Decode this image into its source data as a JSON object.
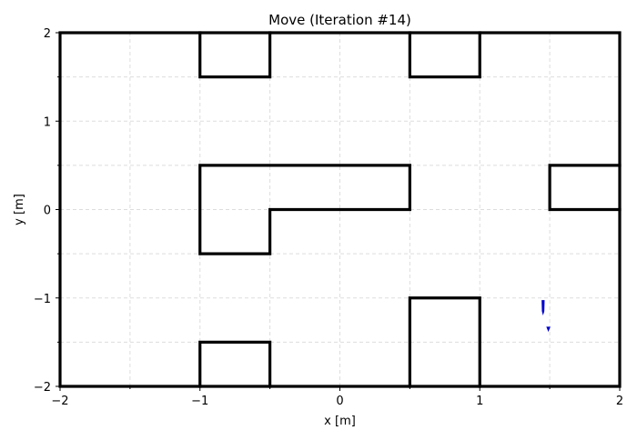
{
  "chart_data": {
    "type": "line",
    "title": "Move (Iteration #14)",
    "xlabel": "x [m]",
    "ylabel": "y [m]",
    "xlim": [
      -2,
      2
    ],
    "ylim": [
      -2,
      2
    ],
    "xticks": [
      -2,
      -1,
      0,
      1,
      2
    ],
    "xtick_labels": [
      "−2",
      "−1",
      "0",
      "1",
      "2"
    ],
    "yticks": [
      -2,
      -1,
      0,
      1,
      2
    ],
    "ytick_labels": [
      "−2",
      "−1",
      "0",
      "1",
      "2"
    ],
    "grid": true,
    "minor_grid_step": 0.5,
    "wall_color": "#000000",
    "grid_color": "#dddddd",
    "walls": [
      {
        "name": "outer-frame",
        "points": [
          [
            -2,
            -2
          ],
          [
            -2,
            2
          ],
          [
            2,
            2
          ],
          [
            2,
            -2
          ],
          [
            -2,
            -2
          ]
        ]
      },
      {
        "name": "top-left-notch",
        "points": [
          [
            -1,
            2
          ],
          [
            -1,
            1.5
          ],
          [
            -0.5,
            1.5
          ],
          [
            -0.5,
            2
          ]
        ]
      },
      {
        "name": "top-right-notch",
        "points": [
          [
            0.5,
            2
          ],
          [
            0.5,
            1.5
          ],
          [
            1,
            1.5
          ],
          [
            1,
            2
          ]
        ]
      },
      {
        "name": "center-block",
        "points": [
          [
            -1,
            0.5
          ],
          [
            0.5,
            0.5
          ],
          [
            0.5,
            0
          ],
          [
            -0.5,
            0
          ],
          [
            -0.5,
            -0.5
          ],
          [
            -1,
            -0.5
          ],
          [
            -1,
            0.5
          ]
        ]
      },
      {
        "name": "right-block",
        "points": [
          [
            2,
            0.5
          ],
          [
            1.5,
            0.5
          ],
          [
            1.5,
            0
          ],
          [
            2,
            0
          ]
        ]
      },
      {
        "name": "bottom-left-bump",
        "points": [
          [
            -1,
            -2
          ],
          [
            -1,
            -1.5
          ],
          [
            -0.5,
            -1.5
          ],
          [
            -0.5,
            -2
          ]
        ]
      },
      {
        "name": "bottom-right-bump",
        "points": [
          [
            0.5,
            -2
          ],
          [
            0.5,
            -1
          ],
          [
            1,
            -1
          ],
          [
            1,
            -2
          ]
        ]
      }
    ],
    "agents": [
      {
        "name": "agent-body",
        "color": "#0000cc",
        "points": [
          [
            1.445,
            -1.03
          ],
          [
            1.46,
            -1.03
          ],
          [
            1.458,
            -1.15
          ],
          [
            1.452,
            -1.18
          ],
          [
            1.447,
            -1.15
          ]
        ]
      },
      {
        "name": "agent-marker",
        "color": "#0000cc",
        "points": [
          [
            1.48,
            -1.33
          ],
          [
            1.5,
            -1.33
          ],
          [
            1.49,
            -1.37
          ]
        ]
      }
    ]
  }
}
